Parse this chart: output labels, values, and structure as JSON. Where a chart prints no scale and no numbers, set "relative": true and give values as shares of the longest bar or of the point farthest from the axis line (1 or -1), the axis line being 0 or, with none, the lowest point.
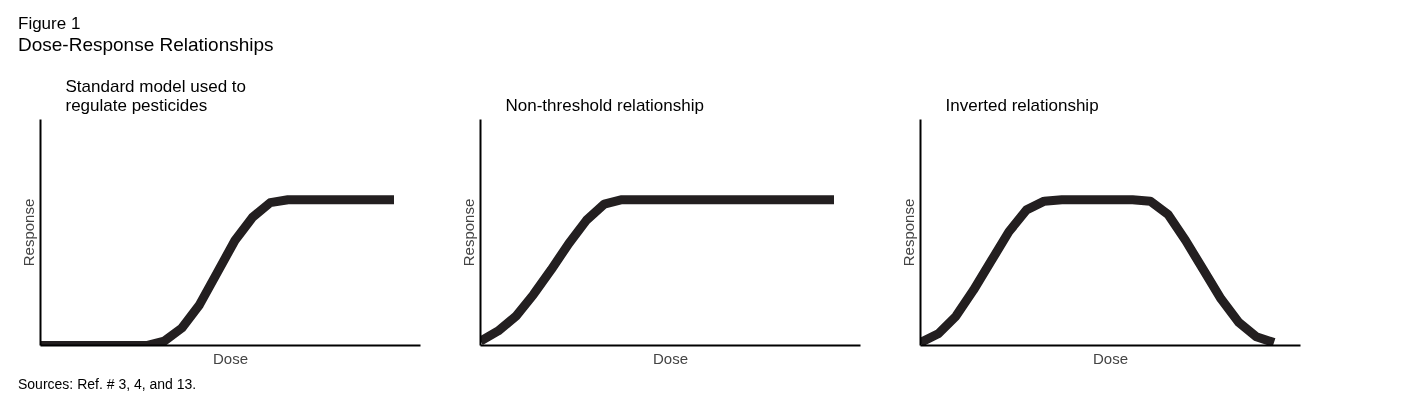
{
  "chart_data": [
    {
      "type": "line",
      "title": "Standard model used to\nregulate pesticides",
      "xlabel": "Dose",
      "ylabel": "Response",
      "relative": true,
      "tick_labels": false,
      "annotations": [
        "Figure 1",
        "Dose-Response Relationships",
        "Sources: Ref. # 3, 4, and 13."
      ],
      "categories": [
        null,
        null,
        null,
        null,
        null,
        null,
        null,
        null,
        null,
        null,
        null,
        null,
        null,
        null,
        null,
        null,
        null,
        null,
        null,
        null,
        null
      ],
      "series": [
        {
          "color": "#231f20",
          "values": [
            0,
            0,
            0,
            0,
            0,
            0,
            0,
            0.03,
            0.12,
            0.28,
            0.5,
            0.72,
            0.88,
            0.98,
            1,
            1,
            1,
            1,
            1,
            1,
            1
          ]
        }
      ]
    },
    {
      "type": "line",
      "title": "Non-threshold relationship",
      "xlabel": "Dose",
      "ylabel": "Response",
      "relative": true,
      "tick_labels": false,
      "categories": [
        null,
        null,
        null,
        null,
        null,
        null,
        null,
        null,
        null,
        null,
        null,
        null,
        null,
        null,
        null,
        null,
        null,
        null,
        null,
        null,
        null
      ],
      "series": [
        {
          "color": "#231f20",
          "values": [
            0.03,
            0.1,
            0.2,
            0.35,
            0.52,
            0.7,
            0.86,
            0.97,
            1,
            1,
            1,
            1,
            1,
            1,
            1,
            1,
            1,
            1,
            1,
            1,
            1
          ]
        }
      ]
    },
    {
      "type": "line",
      "title": "Inverted relationship",
      "xlabel": "Dose",
      "ylabel": "Response",
      "relative": true,
      "tick_labels": false,
      "categories": [
        null,
        null,
        null,
        null,
        null,
        null,
        null,
        null,
        null,
        null,
        null,
        null,
        null,
        null,
        null,
        null,
        null,
        null,
        null,
        null,
        null
      ],
      "series": [
        {
          "color": "#231f20",
          "values": [
            0.02,
            0.08,
            0.2,
            0.38,
            0.58,
            0.78,
            0.93,
            0.99,
            1,
            1,
            1,
            1,
            1,
            0.99,
            0.9,
            0.72,
            0.52,
            0.32,
            0.16,
            0.06,
            0.02
          ]
        }
      ]
    }
  ]
}
